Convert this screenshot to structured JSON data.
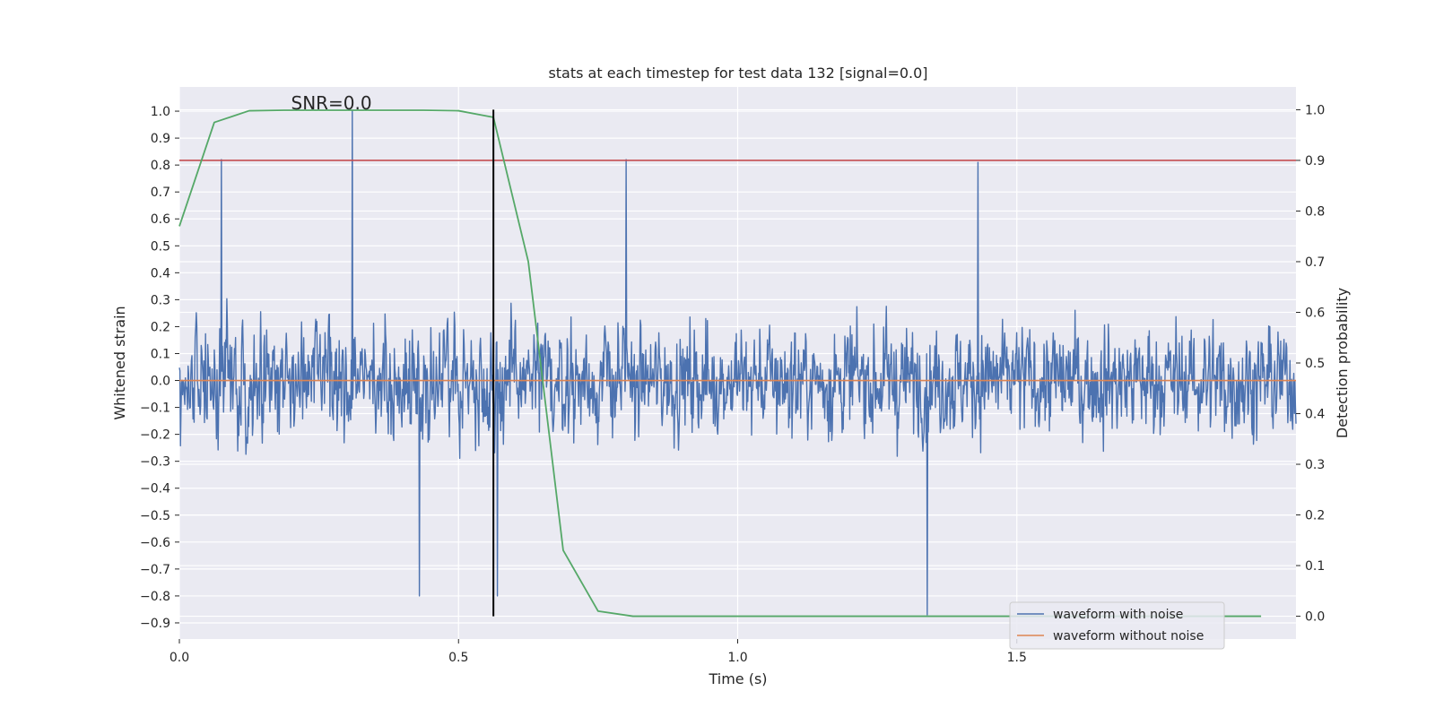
{
  "chart_data": {
    "type": "line",
    "title": "stats at each timestep for test data 132 [signal=0.0]",
    "xlabel": "Time (s)",
    "ylabel": "Whitened strain",
    "ylabel_right": "Detection probability",
    "xlim": [
      0.0,
      2.0
    ],
    "ylim": [
      -0.96,
      1.09
    ],
    "ylim_right": [
      -0.045,
      1.045
    ],
    "x_ticks": [
      0.0,
      0.5,
      1.0,
      1.5
    ],
    "x_tick_labels": [
      "0.0",
      "0.5",
      "1.0",
      "1.5"
    ],
    "y_ticks": [
      1.0,
      0.9,
      0.8,
      0.7,
      0.6,
      0.5,
      0.4,
      0.3,
      0.2,
      0.1,
      0.0,
      -0.1,
      -0.2,
      -0.3,
      -0.4,
      -0.5,
      -0.6,
      -0.7,
      -0.8,
      -0.9
    ],
    "y_tick_labels": [
      "1.0",
      "0.9",
      "0.8",
      "0.7",
      "0.6",
      "0.5",
      "0.4",
      "0.3",
      "0.2",
      "0.1",
      "0.0",
      "−0.1",
      "−0.2",
      "−0.3",
      "−0.4",
      "−0.5",
      "−0.6",
      "−0.7",
      "−0.8",
      "−0.9"
    ],
    "y_right_ticks": [
      1.0,
      0.9,
      0.8,
      0.7,
      0.6,
      0.5,
      0.4,
      0.3,
      0.2,
      0.1,
      0.0
    ],
    "y_right_tick_labels": [
      "1.0",
      "0.9",
      "0.8",
      "0.7",
      "0.6",
      "0.5",
      "0.4",
      "0.3",
      "0.2",
      "0.1",
      "0.0"
    ],
    "annotation": "SNR=0.0",
    "annotation_x": 0.2,
    "annotation_y": 1.0,
    "grid": true,
    "legend_position": "lower right",
    "series": [
      {
        "name": "waveform with noise",
        "color": "#4c72b0",
        "axis": "left",
        "x_start": 0.0,
        "x_end": 2.0,
        "num_points": 2048,
        "min": -0.87,
        "max": 1.0,
        "notable_points": [
          [
            0.075,
            0.82
          ],
          [
            0.31,
            1.0
          ],
          [
            0.43,
            -0.8
          ],
          [
            0.57,
            -0.8
          ],
          [
            1.34,
            -0.87
          ],
          [
            1.43,
            0.81
          ],
          [
            0.8,
            0.82
          ]
        ]
      },
      {
        "name": "waveform without noise",
        "color": "#dd8452",
        "axis": "left",
        "x": [
          0.0,
          2.0
        ],
        "y": [
          0.0,
          0.0
        ]
      },
      {
        "color": "#55a868",
        "axis": "right",
        "x": [
          0.0,
          0.0625,
          0.125,
          0.1875,
          0.25,
          0.3125,
          0.375,
          0.4375,
          0.5,
          0.5625,
          0.625,
          0.6875,
          0.75,
          0.8125,
          0.875,
          0.9375,
          1.0,
          1.0625,
          1.125,
          1.1875,
          1.25,
          1.3125,
          1.375,
          1.4375,
          1.5,
          1.5625,
          1.625,
          1.6875,
          1.75,
          1.8125,
          1.875,
          1.9375
        ],
        "y": [
          0.77,
          0.975,
          0.998,
          0.999,
          0.999,
          0.999,
          0.999,
          0.999,
          0.998,
          0.985,
          0.7,
          0.13,
          0.01,
          0.0,
          0.0,
          0.0,
          0.0,
          0.0,
          0.0,
          0.0,
          0.0,
          0.0,
          0.0,
          0.0,
          0.0,
          0.0,
          0.0,
          0.0,
          0.0,
          0.0,
          0.0,
          0.0
        ]
      },
      {
        "color": "#c44e52",
        "axis": "right",
        "type": "hline",
        "y": 0.9
      },
      {
        "color": "#000000",
        "axis": "right",
        "type": "vline",
        "x": 0.5625,
        "y_range": [
          0.0,
          1.0
        ]
      }
    ]
  }
}
